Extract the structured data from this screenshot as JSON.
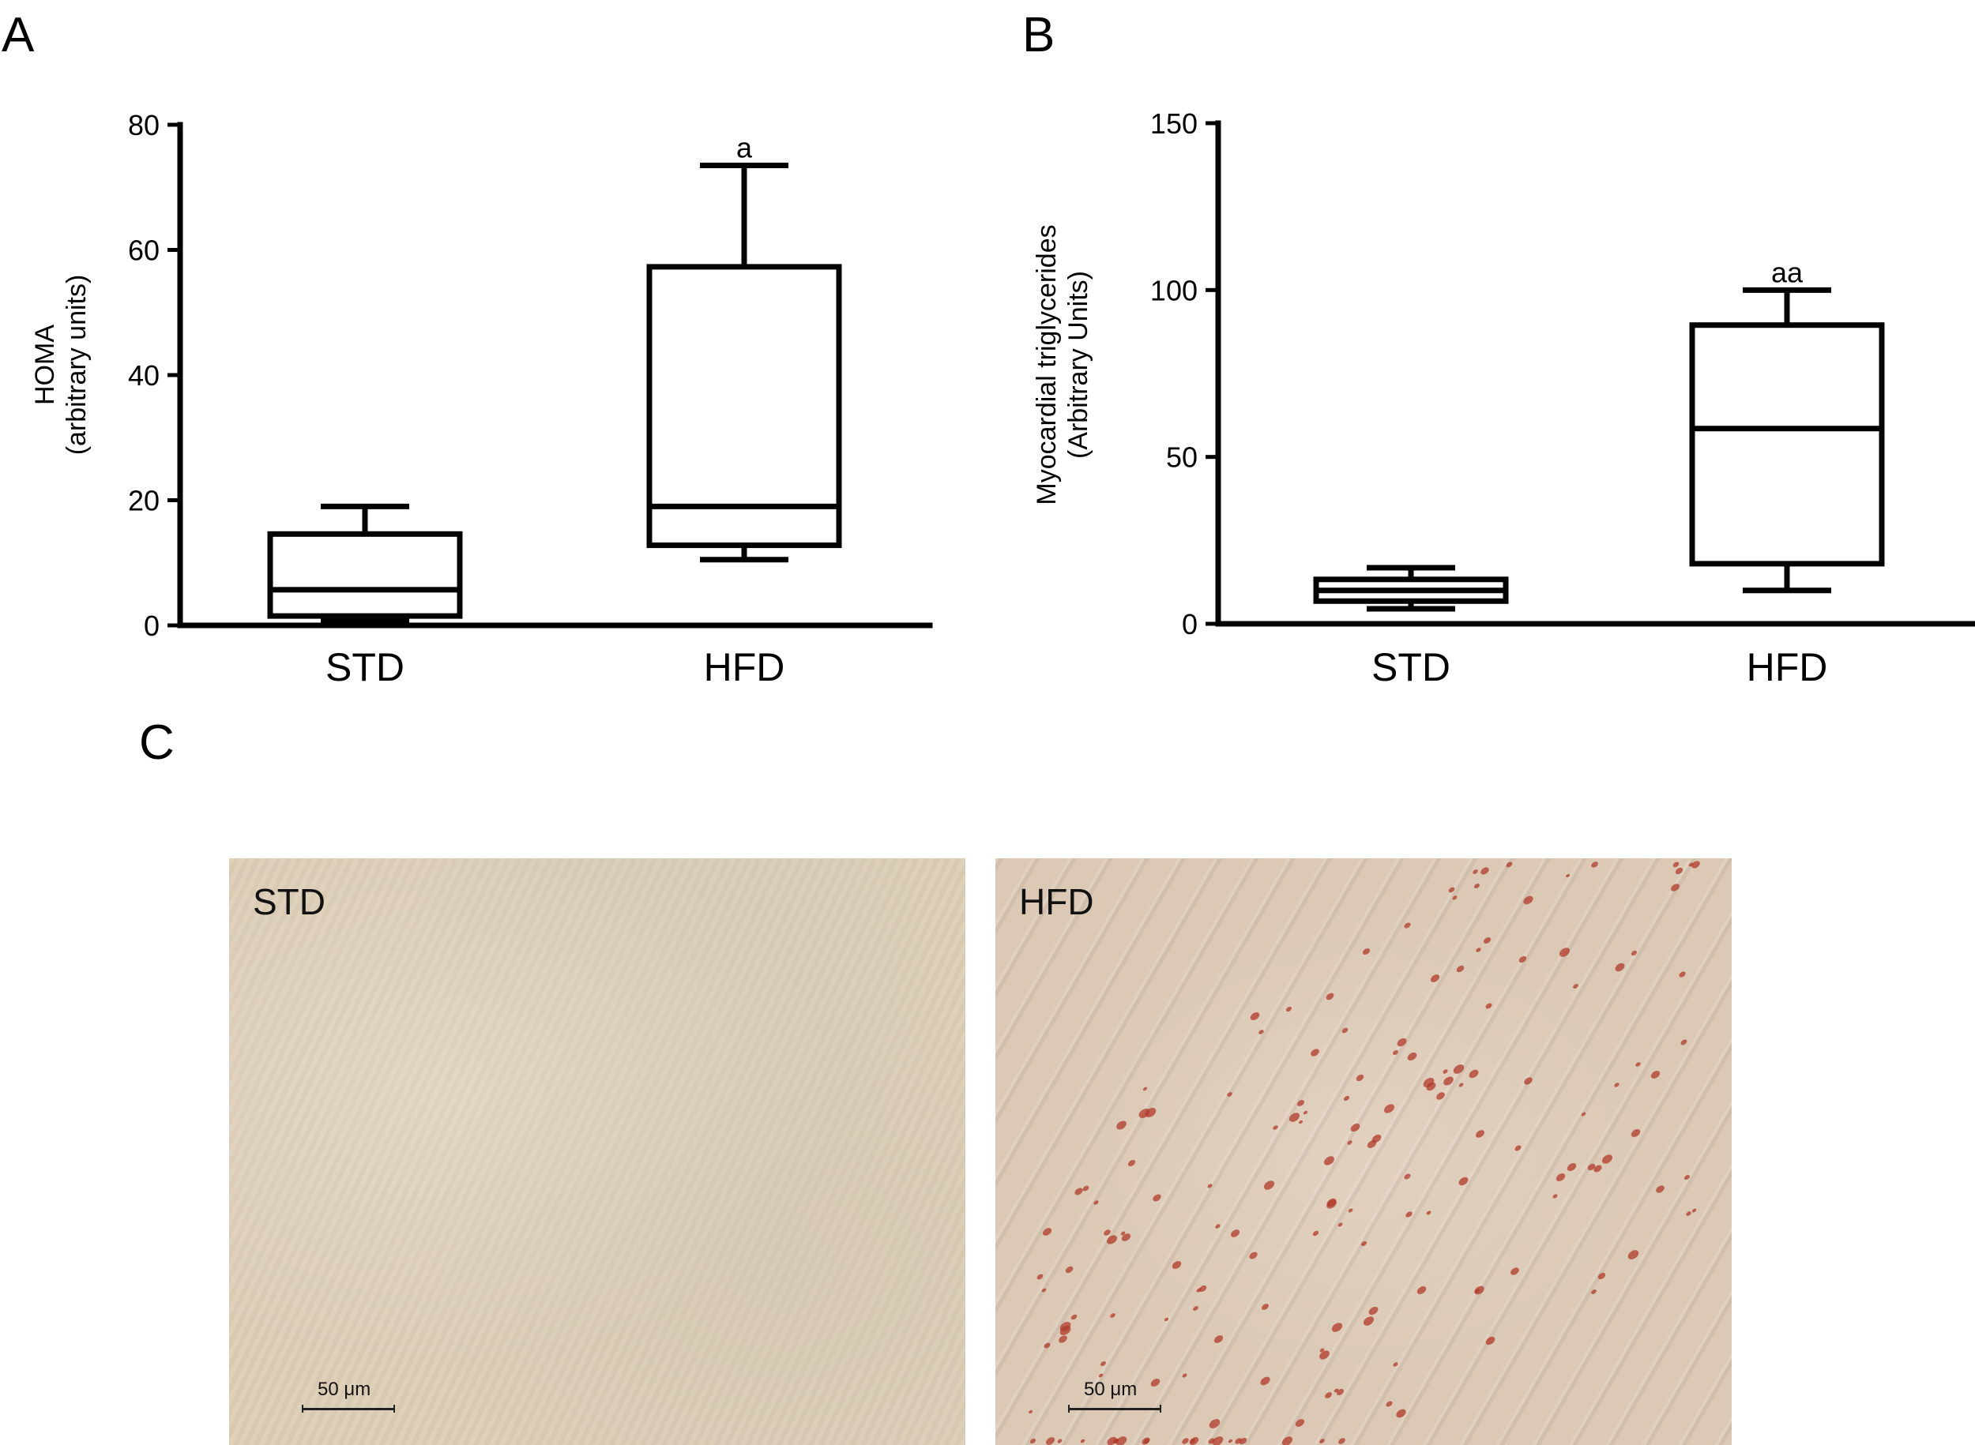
{
  "panels": {
    "a": "A",
    "b": "B",
    "c": "C"
  },
  "chart_data": [
    {
      "type": "box",
      "xlabel": "",
      "ylabel_line1": "HOMA",
      "ylabel_line2": "(arbitrary units)",
      "ylim": [
        0,
        80
      ],
      "yticks": [
        0,
        20,
        40,
        60,
        80
      ],
      "categories": [
        "STD",
        "HFD"
      ],
      "boxes": [
        {
          "category": "STD",
          "min": 0.8,
          "q1": 1.5,
          "median": 5.7,
          "q3": 14.6,
          "max": 19.0,
          "annotation": ""
        },
        {
          "category": "HFD",
          "min": 10.5,
          "q1": 12.8,
          "median": 19.0,
          "q3": 57.3,
          "max": 73.5,
          "annotation": "a"
        }
      ]
    },
    {
      "type": "box",
      "xlabel": "",
      "ylabel_line1": "Myocardial triglycerides",
      "ylabel_line2": "(Arbitrary Units)",
      "ylim": [
        0,
        150
      ],
      "yticks": [
        0,
        50,
        100,
        150
      ],
      "categories": [
        "STD",
        "HFD"
      ],
      "boxes": [
        {
          "category": "STD",
          "min": 4.5,
          "q1": 6.8,
          "median": 10.0,
          "q3": 13.3,
          "max": 16.8,
          "annotation": ""
        },
        {
          "category": "HFD",
          "min": 10.0,
          "q1": 18.0,
          "median": 58.5,
          "q3": 89.5,
          "max": 100.0,
          "annotation": "aa"
        }
      ]
    }
  ],
  "micrographs": [
    {
      "label": "STD",
      "scale": "50 μm"
    },
    {
      "label": "HFD",
      "scale": "50 μm"
    }
  ],
  "colors": {
    "stain": "#b23a2a",
    "tissue": "#dccdb5"
  }
}
